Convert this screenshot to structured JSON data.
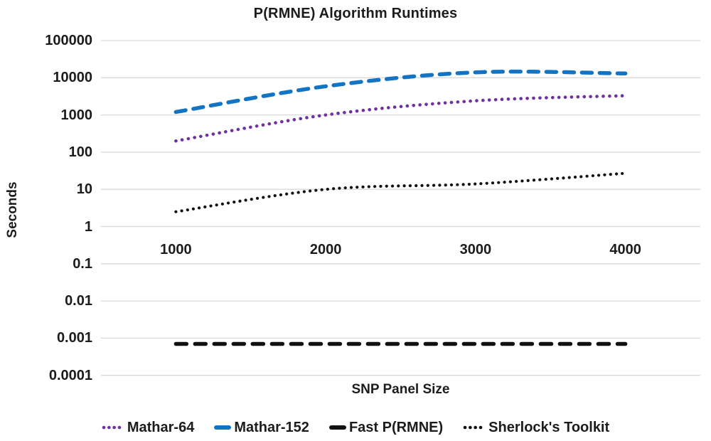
{
  "chart_data": {
    "type": "line",
    "title": "P(RMNE) Algorithm Runtimes",
    "xlabel": "SNP Panel Size",
    "ylabel": "Seconds",
    "x": [
      1000,
      2000,
      3000,
      4000
    ],
    "x_tick_labels": [
      "1000",
      "2000",
      "3000",
      "4000"
    ],
    "y_scale": "log",
    "ylim": [
      0.0001,
      100000
    ],
    "y_ticks": [
      100000,
      10000,
      1000,
      100,
      10,
      1,
      0.1,
      0.01,
      0.001,
      0.0001
    ],
    "y_tick_labels": [
      "100000",
      "10000",
      "1000",
      "100",
      "10",
      "1",
      "0.1",
      "0.01",
      "0.001",
      "0.0001"
    ],
    "grid": true,
    "legend_position": "bottom",
    "series": [
      {
        "name": "Mathar-64",
        "color": "#7030A0",
        "style": "dotted",
        "values": [
          200,
          1000,
          2400,
          3300
        ]
      },
      {
        "name": "Mathar-152",
        "color": "#1474C4",
        "style": "dashed",
        "values": [
          1200,
          5900,
          14000,
          13000
        ]
      },
      {
        "name": "Fast P(RMNE)",
        "color": "#111111",
        "style": "dashed",
        "values": [
          0.0007,
          0.0007,
          0.0007,
          0.0007
        ]
      },
      {
        "name": "Sherlock's Toolkit",
        "color": "#111111",
        "style": "dotted",
        "values": [
          2.5,
          10,
          14,
          27
        ]
      }
    ]
  },
  "colors": {
    "grid": "#D9D9D9",
    "text": "#1C1C1C",
    "background": "#FFFFFF"
  }
}
